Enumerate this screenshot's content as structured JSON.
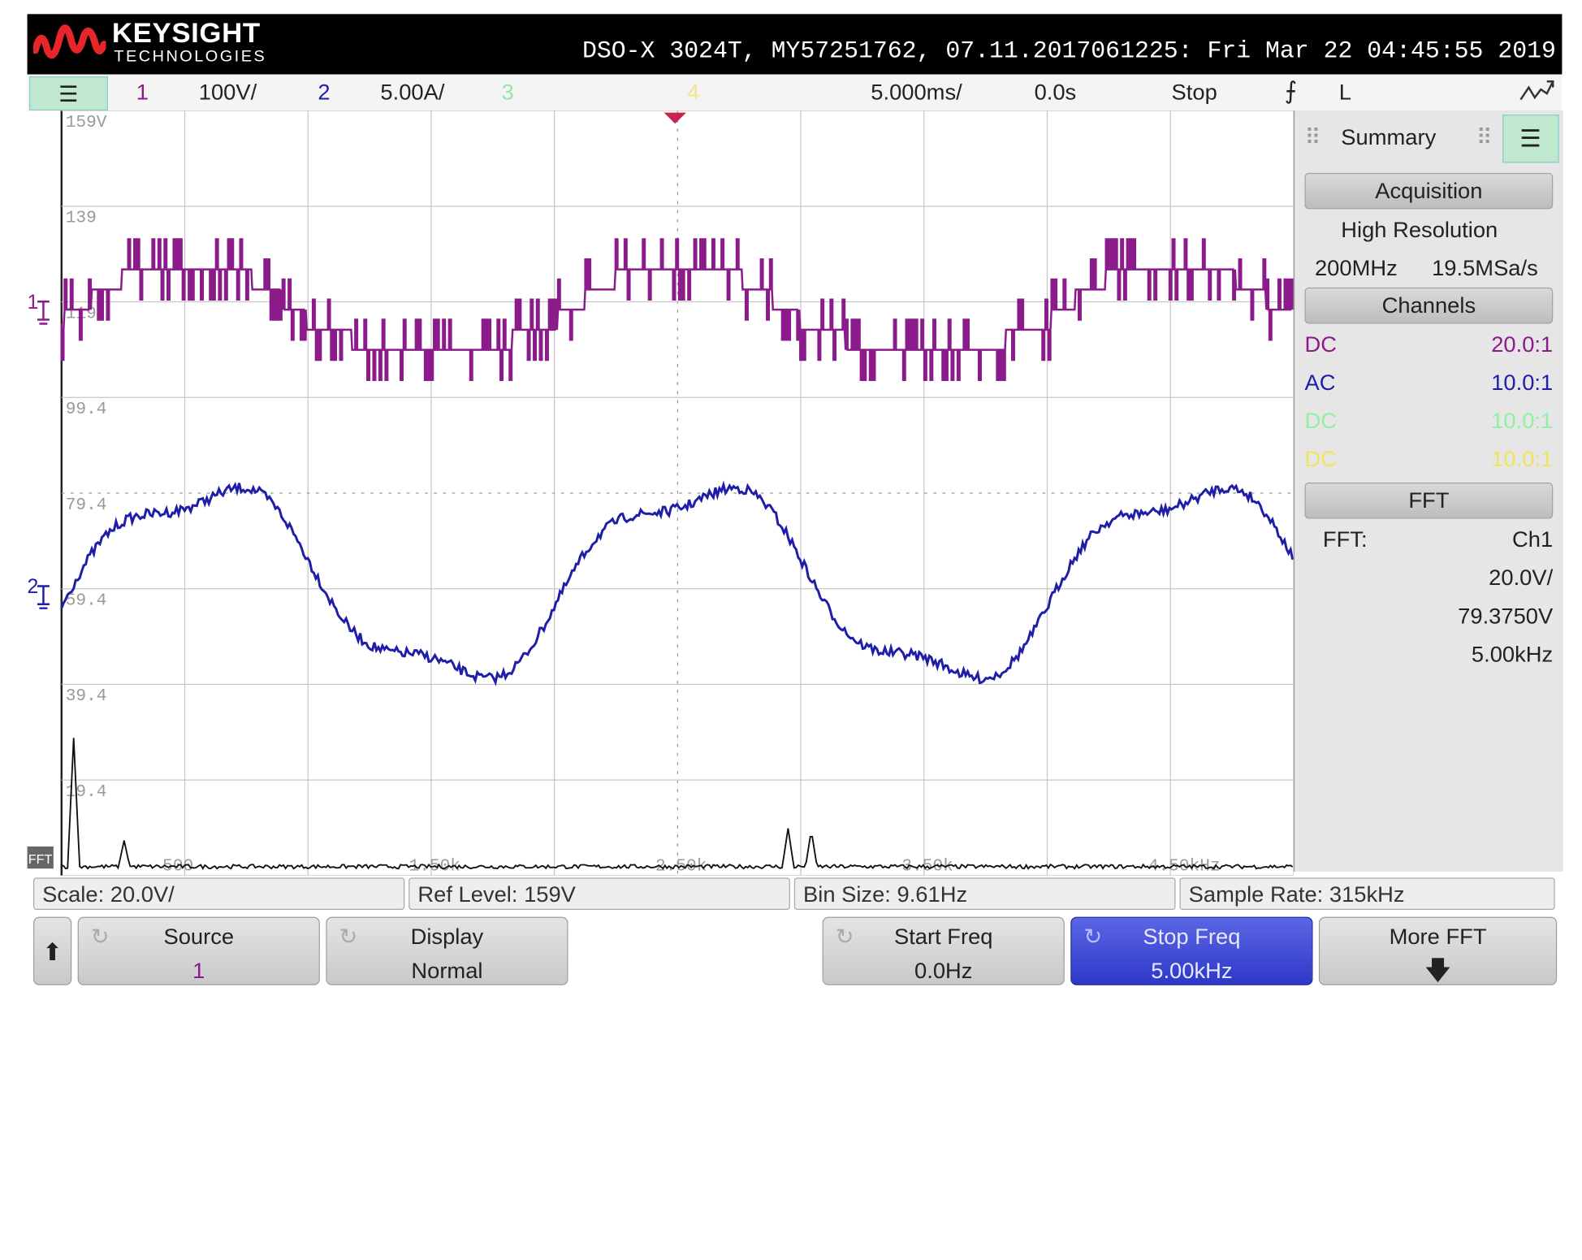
{
  "titlebar": {
    "brand": "KEYSIGHT",
    "brand_sub": "TECHNOLOGIES",
    "instrument_info": "DSO-X 3024T, MY57251762, 07.11.2017061225: Fri Mar 22 04:45:55 2019"
  },
  "settings": {
    "ch1_label": "1",
    "ch1_scale": "100V/",
    "ch2_label": "2",
    "ch2_scale": "5.00A/",
    "ch3_label": "3",
    "ch4_label": "4",
    "timebase": "5.000ms/",
    "delay": "0.0s",
    "run_state": "Stop",
    "trigger_level": "L",
    "colors": {
      "ch1": "#8b1a8b",
      "ch2": "#1e1ea8",
      "ch3": "#6ee08a",
      "ch4": "#f2e12a"
    }
  },
  "graticule": {
    "y_labels": [
      "159V",
      "139",
      "119",
      "99.4",
      "79.4",
      "59.4",
      "39.4",
      "19.4"
    ],
    "fft_x_labels": [
      "500",
      "1.50k",
      "2.50k",
      "3.50k",
      "4.50kHz"
    ],
    "fft_tag": "FFT"
  },
  "panel": {
    "title": "Summary",
    "acquisition_header": "Acquisition",
    "acq_mode": "High Resolution",
    "bandwidth": "200MHz",
    "sample_rate": "19.5MSa/s",
    "channels_header": "Channels",
    "channels": [
      {
        "coupling": "DC",
        "probe": "20.0:1",
        "color": "#8b1a8b"
      },
      {
        "coupling": "AC",
        "probe": "10.0:1",
        "color": "#1e1ea8"
      },
      {
        "coupling": "DC",
        "probe": "10.0:1",
        "color": "#8ff0a6"
      },
      {
        "coupling": "DC",
        "probe": "10.0:1",
        "color": "#f2e45a"
      }
    ],
    "fft_header": "FFT",
    "fft_label": "FFT:",
    "fft_source": "Ch1",
    "fft_scale": "20.0V/",
    "fft_offset": "79.3750V",
    "fft_span": "5.00kHz"
  },
  "statusbar": {
    "scale": "Scale: 20.0V/",
    "ref_level": "Ref Level: 159V",
    "bin_size": "Bin Size: 9.61Hz",
    "sample_rate": "Sample Rate: 315kHz"
  },
  "softkeys": {
    "source_label": "Source",
    "source_value": "1",
    "display_label": "Display",
    "display_value": "Normal",
    "start_freq_label": "Start Freq",
    "start_freq_value": "0.0Hz",
    "stop_freq_label": "Stop Freq",
    "stop_freq_value": "5.00kHz",
    "more_fft_label": "More FFT"
  }
}
